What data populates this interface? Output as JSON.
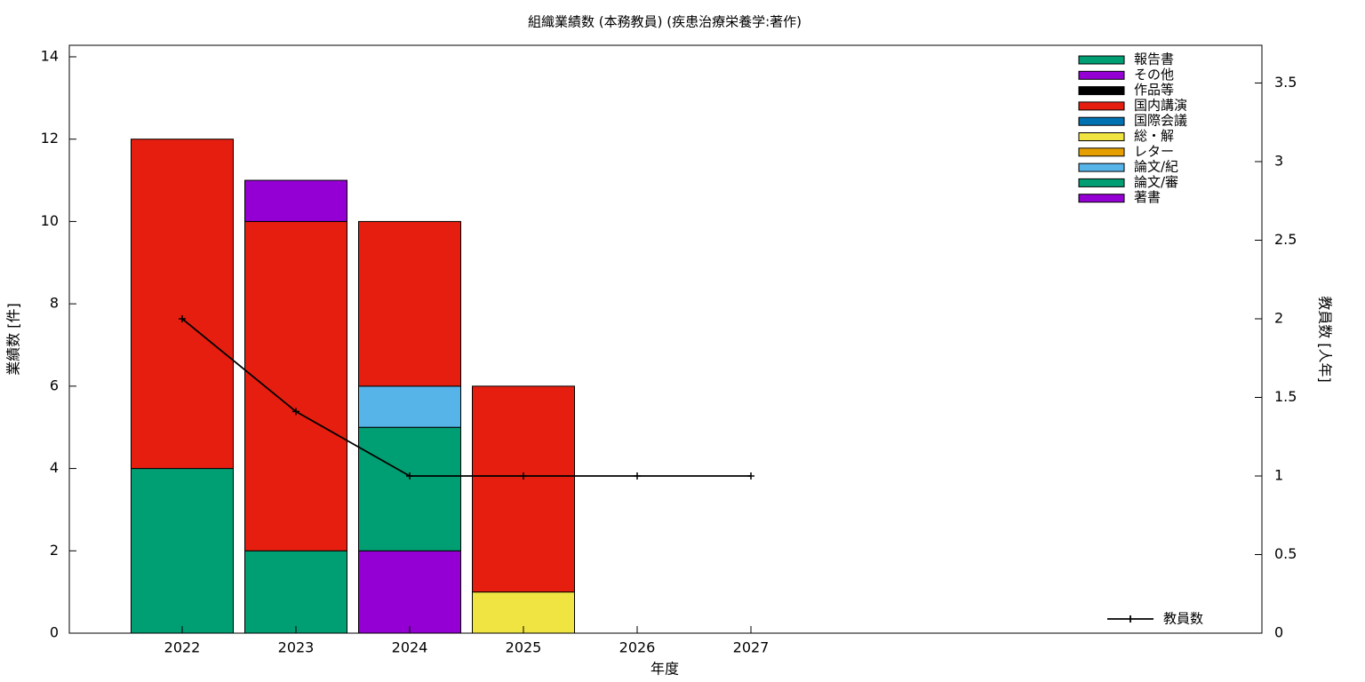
{
  "chart_data": {
    "type": "stacked-bar-line",
    "title": "組織業績数 (本務教員) (疾患治療栄養学:著作)",
    "x_label": "年度",
    "y_label": "業績数 [件]",
    "y2_label": "教員数 [人年]",
    "categories": [
      "2022",
      "2023",
      "2024",
      "2025",
      "2026",
      "2027"
    ],
    "series": [
      {
        "name": "著書",
        "color": "#9400d3",
        "values": [
          0,
          0,
          2,
          0,
          0,
          0
        ]
      },
      {
        "name": "論文/審",
        "color": "#009e73",
        "values": [
          4,
          2,
          3,
          0,
          0,
          0
        ]
      },
      {
        "name": "論文/紀",
        "color": "#56b4e9",
        "values": [
          0,
          0,
          1,
          0,
          0,
          0
        ]
      },
      {
        "name": "レター",
        "color": "#e69f00",
        "values": [
          0,
          0,
          0,
          0,
          0,
          0
        ]
      },
      {
        "name": "総・解",
        "color": "#f0e442",
        "values": [
          0,
          0,
          0,
          1,
          0,
          0
        ]
      },
      {
        "name": "国際会議",
        "color": "#0072b2",
        "values": [
          0,
          0,
          0,
          0,
          0,
          0
        ]
      },
      {
        "name": "国内講演",
        "color": "#e51e10",
        "values": [
          8,
          8,
          4,
          5,
          0,
          0
        ]
      },
      {
        "name": "作品等",
        "color": "#000000",
        "values": [
          0,
          0,
          0,
          0,
          0,
          0
        ]
      },
      {
        "name": "その他",
        "color": "#9400d3",
        "values": [
          0,
          1,
          0,
          0,
          0,
          0
        ]
      },
      {
        "name": "報告書",
        "color": "#009e73",
        "values": [
          0,
          0,
          0,
          0,
          0,
          0
        ]
      },
      {
        "name": "教員数",
        "color": "#000000",
        "axis": "y2",
        "line": true,
        "values": [
          2,
          1.41,
          1,
          1,
          1,
          1
        ]
      }
    ],
    "ylim": [
      0,
      14.28
    ],
    "yticks": [
      0,
      2,
      4,
      6,
      8,
      10,
      12,
      14
    ],
    "y2lim": [
      0,
      3.74
    ],
    "y2ticks": [
      0,
      0.5,
      1,
      1.5,
      2,
      2.5,
      3,
      3.5
    ],
    "grid": false
  }
}
